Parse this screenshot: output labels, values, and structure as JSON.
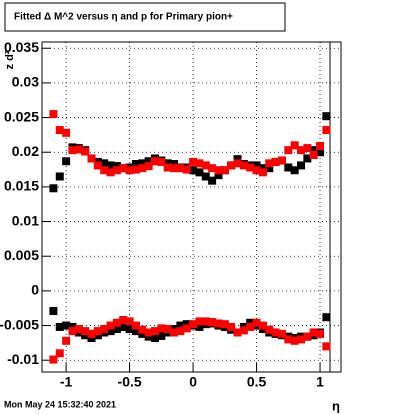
{
  "chart_data": {
    "type": "scatter",
    "title": "Fitted Δ M^2 versus η and p for Primary pion+",
    "x_label": "η",
    "y_label": "z d²",
    "timestamp": "Mon May 24 15:32:40 2021",
    "xlim": [
      -1.19,
      1.165
    ],
    "xticks": [
      -1,
      -0.5,
      0,
      0.5,
      1
    ],
    "ylim": [
      -0.0117,
      0.0359
    ],
    "yticks": [
      -0.01,
      -0.005,
      0,
      0.005,
      0.01,
      0.015,
      0.02,
      0.025,
      0.03,
      0.035
    ],
    "grid": true,
    "x": [
      -1.1,
      -1.05,
      -1.0,
      -0.95,
      -0.9,
      -0.85,
      -0.8,
      -0.75,
      -0.7,
      -0.65,
      -0.6,
      -0.55,
      -0.5,
      -0.45,
      -0.4,
      -0.35,
      -0.3,
      -0.25,
      -0.2,
      -0.15,
      -0.1,
      -0.05,
      0,
      0.05,
      0.1,
      0.15,
      0.2,
      0.25,
      0.3,
      0.35,
      0.4,
      0.45,
      0.5,
      0.55,
      0.6,
      0.65,
      0.7,
      0.75,
      0.8,
      0.85,
      0.9,
      0.95,
      1.0,
      1.05
    ],
    "series": [
      {
        "color": "#000000",
        "values": [
          0.0148,
          0.0165,
          0.0187,
          0.0207,
          0.0206,
          0.0203,
          0.0191,
          0.0186,
          0.0184,
          0.0181,
          0.018,
          0.0177,
          0.0178,
          0.0183,
          0.0184,
          0.0187,
          0.0191,
          0.0188,
          0.0184,
          0.0183,
          0.0178,
          0.0178,
          0.0174,
          0.0171,
          0.0165,
          0.0159,
          0.0167,
          0.0174,
          0.0181,
          0.019,
          0.0183,
          0.0181,
          0.0181,
          0.0177,
          0.0177,
          0.0186,
          0.0188,
          0.0178,
          0.0174,
          0.0181,
          0.0191,
          0.0203,
          0.02,
          0.0252
        ]
      },
      {
        "color": "#ff0000",
        "values": [
          0.0255,
          0.0232,
          0.0228,
          0.0203,
          0.0204,
          0.0201,
          0.0191,
          0.0181,
          0.0174,
          0.0171,
          0.0174,
          0.0177,
          0.0174,
          0.0175,
          0.0177,
          0.018,
          0.0187,
          0.0186,
          0.0178,
          0.0177,
          0.0177,
          0.0175,
          0.0186,
          0.0184,
          0.0181,
          0.0177,
          0.0174,
          0.0174,
          0.0181,
          0.0184,
          0.0181,
          0.0178,
          0.0174,
          0.0171,
          0.0184,
          0.0186,
          0.0188,
          0.0203,
          0.021,
          0.0203,
          0.0206,
          0.0196,
          0.0209,
          0.0232
        ]
      },
      {
        "color": "#000000",
        "values": [
          -0.0029,
          -0.0052,
          -0.005,
          -0.0052,
          -0.006,
          -0.0064,
          -0.0068,
          -0.0064,
          -0.006,
          -0.0058,
          -0.0055,
          -0.0052,
          -0.0055,
          -0.0058,
          -0.0062,
          -0.0066,
          -0.0068,
          -0.0065,
          -0.006,
          -0.0055,
          -0.005,
          -0.0048,
          -0.005,
          -0.0052,
          -0.0048,
          -0.0047,
          -0.005,
          -0.0052,
          -0.0056,
          -0.006,
          -0.0052,
          -0.0046,
          -0.005,
          -0.0055,
          -0.006,
          -0.0062,
          -0.0064,
          -0.0066,
          -0.0068,
          -0.0066,
          -0.0066,
          -0.0064,
          -0.006,
          -0.0038
        ]
      },
      {
        "color": "#ff0000",
        "values": [
          -0.0099,
          -0.009,
          -0.0072,
          -0.0058,
          -0.0055,
          -0.0058,
          -0.0062,
          -0.0058,
          -0.0055,
          -0.005,
          -0.0046,
          -0.0042,
          -0.0044,
          -0.005,
          -0.0056,
          -0.006,
          -0.0058,
          -0.0054,
          -0.0055,
          -0.006,
          -0.0058,
          -0.0054,
          -0.0048,
          -0.0044,
          -0.0044,
          -0.0045,
          -0.0047,
          -0.0048,
          -0.0052,
          -0.006,
          -0.0057,
          -0.0052,
          -0.0046,
          -0.005,
          -0.0056,
          -0.006,
          -0.0062,
          -0.007,
          -0.0072,
          -0.007,
          -0.0066,
          -0.006,
          -0.0062,
          -0.008
        ]
      }
    ]
  }
}
